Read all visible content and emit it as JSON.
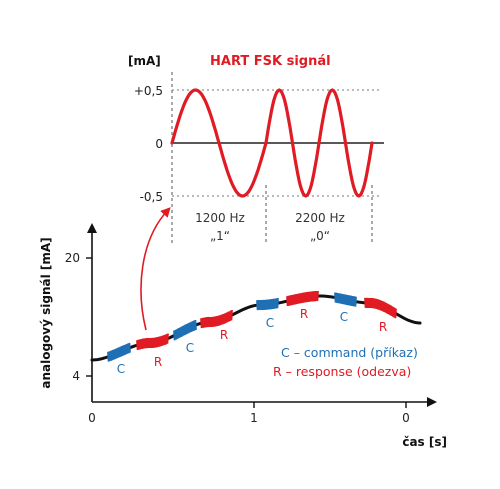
{
  "fsk": {
    "title": "HART FSK signál",
    "unit": "[mA]",
    "ticks": [
      "+0,5",
      "0",
      "-0,5"
    ],
    "segments": [
      {
        "freq": "1200 Hz",
        "bit": "„1“"
      },
      {
        "freq": "2200 Hz",
        "bit": "„0“"
      }
    ]
  },
  "analog": {
    "ylabel": "analogový signál [mA]",
    "xlabel": "čas [s]",
    "yticks": [
      "20",
      "4"
    ],
    "xticks": [
      "0",
      "1",
      "0"
    ],
    "c_letter": "C",
    "r_letter": "R",
    "legend": {
      "command": "C – command (příkaz)",
      "response": "R – response (odezva)"
    }
  },
  "colors": {
    "signal_red": "#e01b24",
    "command_blue": "#1f6fb5",
    "response_red": "#e01b24",
    "curve": "#111111"
  }
}
